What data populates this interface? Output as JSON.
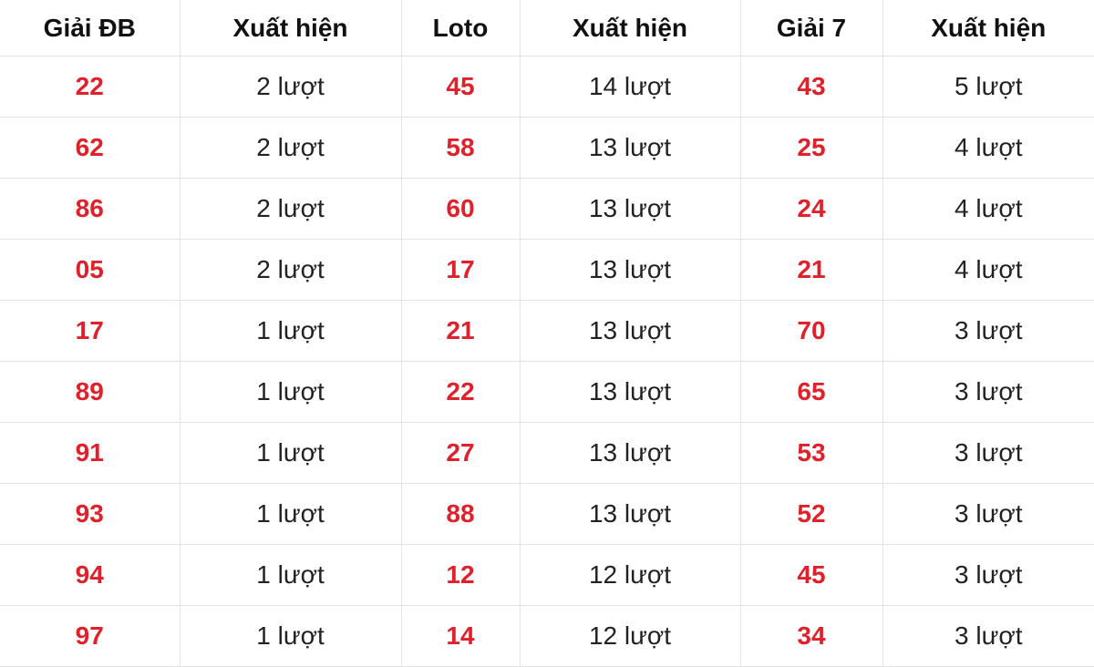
{
  "colors": {
    "number": "#e0202a",
    "text": "#222222",
    "border": "#e3e3e3"
  },
  "headers": [
    "Giải ĐB",
    "Xuất hiện",
    "Loto",
    "Xuất hiện",
    "Giải 7",
    "Xuất hiện"
  ],
  "rows": [
    [
      "22",
      "2 lượt",
      "45",
      "14 lượt",
      "43",
      "5 lượt"
    ],
    [
      "62",
      "2 lượt",
      "58",
      "13 lượt",
      "25",
      "4 lượt"
    ],
    [
      "86",
      "2 lượt",
      "60",
      "13 lượt",
      "24",
      "4 lượt"
    ],
    [
      "05",
      "2 lượt",
      "17",
      "13 lượt",
      "21",
      "4 lượt"
    ],
    [
      "17",
      "1 lượt",
      "21",
      "13 lượt",
      "70",
      "3 lượt"
    ],
    [
      "89",
      "1 lượt",
      "22",
      "13 lượt",
      "65",
      "3 lượt"
    ],
    [
      "91",
      "1 lượt",
      "27",
      "13 lượt",
      "53",
      "3 lượt"
    ],
    [
      "93",
      "1 lượt",
      "88",
      "13 lượt",
      "52",
      "3 lượt"
    ],
    [
      "94",
      "1 lượt",
      "12",
      "12 lượt",
      "45",
      "3 lượt"
    ],
    [
      "97",
      "1 lượt",
      "14",
      "12 lượt",
      "34",
      "3 lượt"
    ]
  ]
}
